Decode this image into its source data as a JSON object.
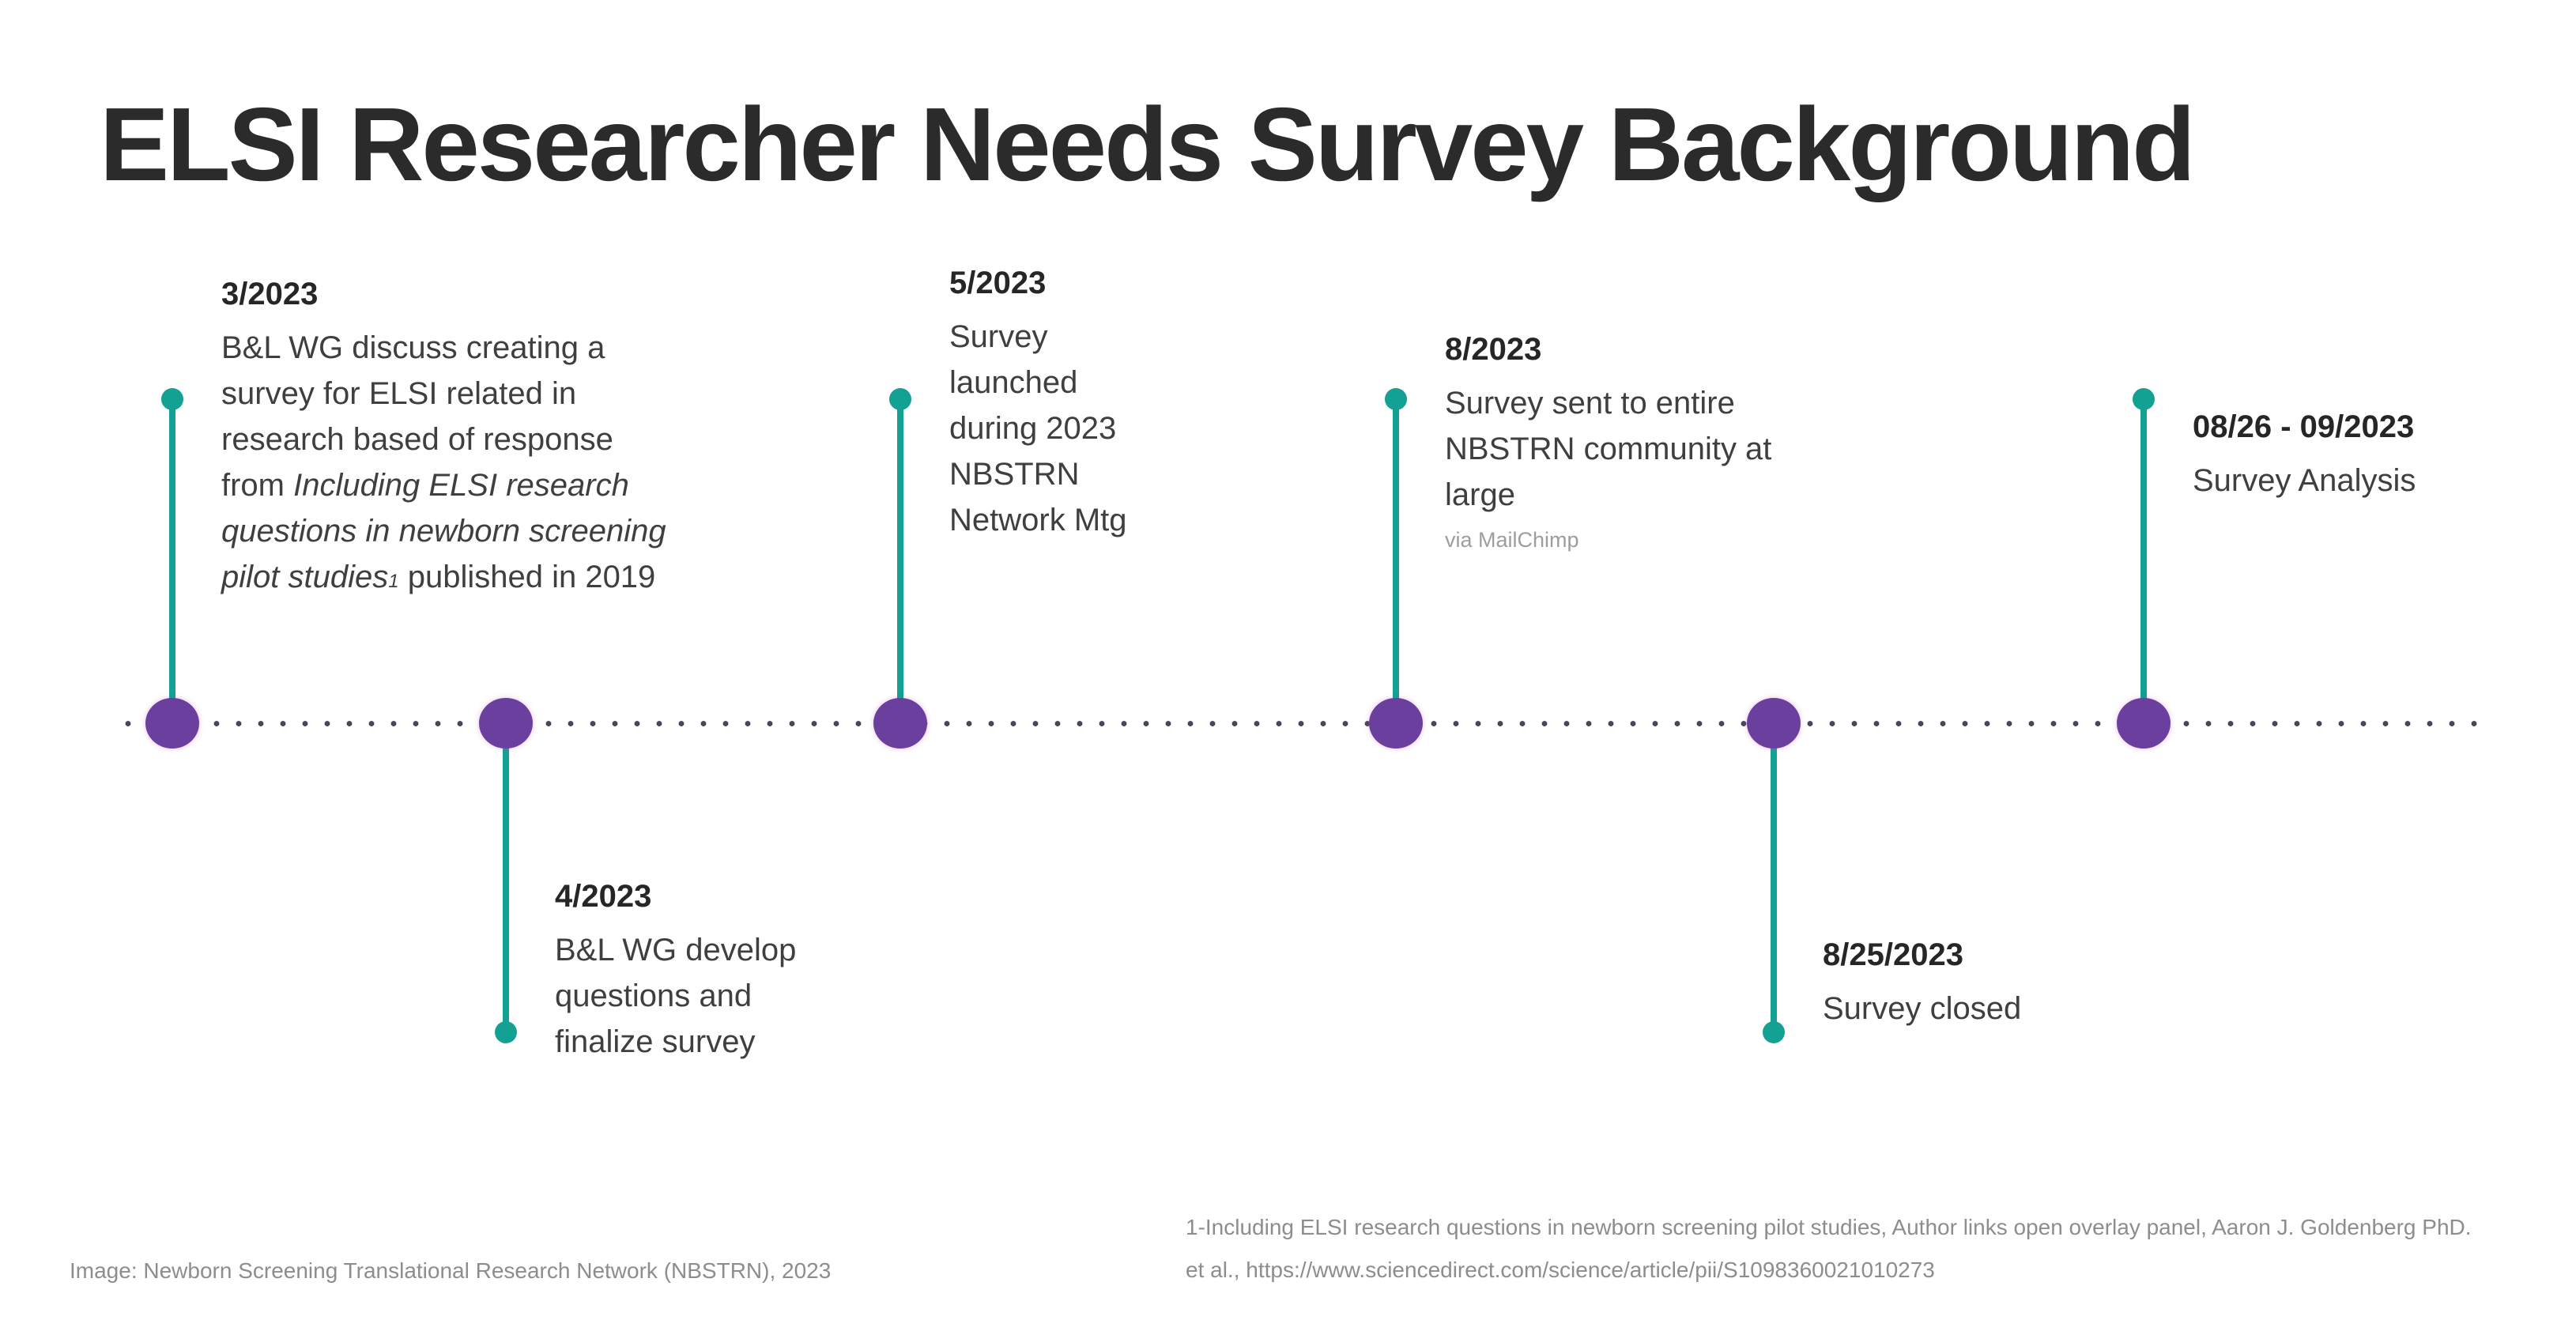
{
  "title": "ELSI Researcher Needs Survey Background",
  "timeline": {
    "dot_color": "#4c4456",
    "node_color": "#6a3f9e",
    "stem_color": "#12a192",
    "events": [
      {
        "date": "3/2023",
        "stem_direction": "up",
        "lines": [
          [
            "B&L WG discuss creating a"
          ],
          [
            "survey for ELSI related in"
          ],
          [
            "research based of response"
          ],
          [
            "from ",
            {
              "t": "Including ELSI research",
              "i": true
            }
          ],
          [
            {
              "t": "questions in newborn screening",
              "i": true
            }
          ],
          [
            {
              "t": "pilot studies",
              "i": true
            },
            {
              "t": "1",
              "i": true,
              "sub": true
            },
            " published in 2019"
          ]
        ]
      },
      {
        "date": "4/2023",
        "stem_direction": "down",
        "lines": [
          [
            "B&L WG develop"
          ],
          [
            "questions and"
          ],
          [
            "finalize survey"
          ]
        ]
      },
      {
        "date": "5/2023",
        "stem_direction": "up",
        "lines": [
          [
            "Survey"
          ],
          [
            "launched"
          ],
          [
            "during 2023"
          ],
          [
            "NBSTRN"
          ],
          [
            "Network Mtg"
          ]
        ]
      },
      {
        "date": "8/2023",
        "stem_direction": "up",
        "lines": [
          [
            "Survey sent to entire"
          ],
          [
            "NBSTRN community at"
          ],
          [
            "large"
          ],
          [
            {
              "t": "via MailChimp",
              "small": true
            }
          ]
        ]
      },
      {
        "date": "8/25/2023",
        "stem_direction": "down",
        "lines": [
          [
            "Survey closed"
          ]
        ]
      },
      {
        "date": "08/26 - 09/2023",
        "stem_direction": "up",
        "lines": [
          [
            "Survey Analysis"
          ]
        ]
      }
    ]
  },
  "footer": {
    "image_credit": "Image: Newborn Screening Translational Research Network (NBSTRN), 2023",
    "footnote": "1-Including ELSI research questions in newborn screening pilot studies, Author links open overlay panel, Aaron J. Goldenberg PhD. et al., https://www.sciencedirect.com/science/article/pii/S1098360021010273"
  }
}
